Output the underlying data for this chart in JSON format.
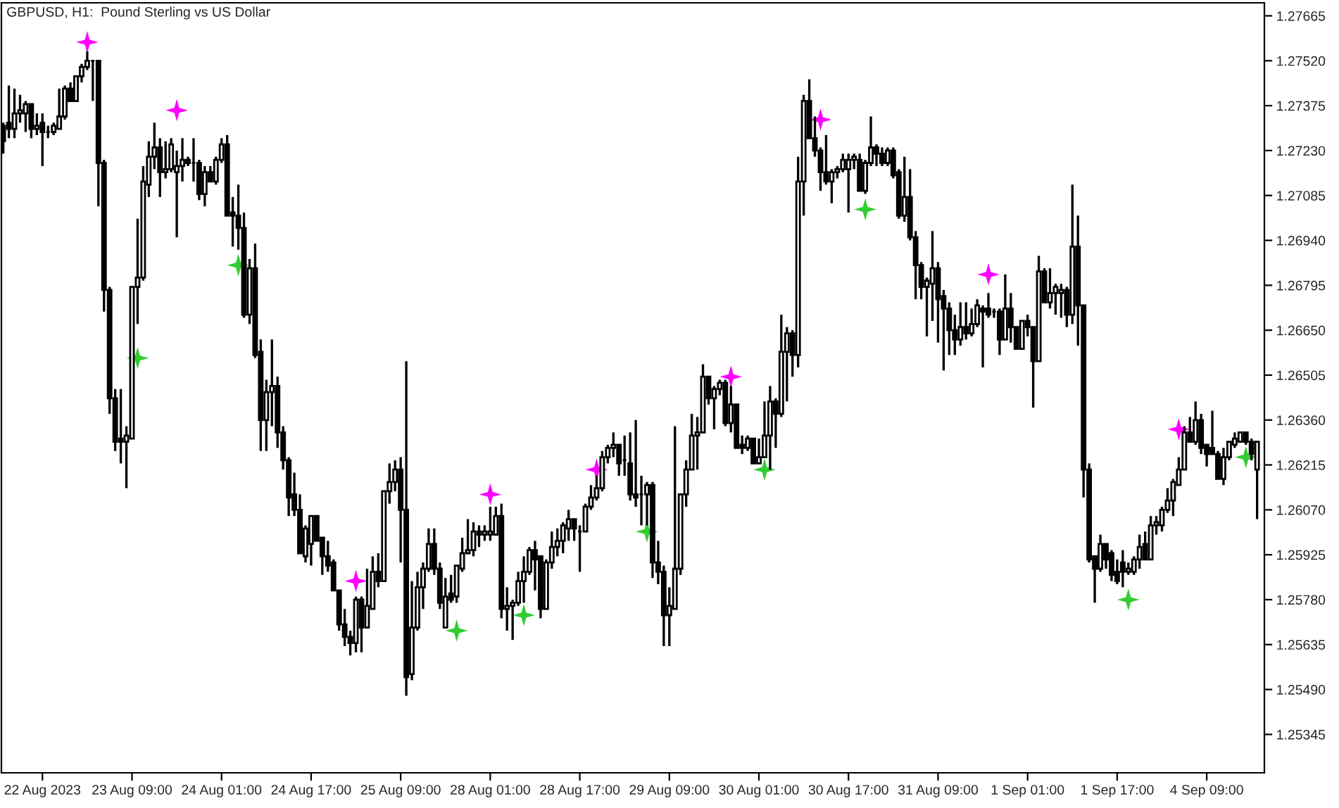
{
  "chart_data": {
    "type": "candlestick",
    "title": "GBPUSD, H1:  Pound Sterling vs US Dollar",
    "categories": [
      null,
      null,
      null,
      null,
      null,
      null,
      null,
      "22 Aug 2023",
      null,
      null,
      null,
      null,
      null,
      null,
      null,
      null,
      null,
      null,
      null,
      null,
      null,
      null,
      null,
      "23 Aug 09:00",
      null,
      null,
      null,
      null,
      null,
      null,
      null,
      null,
      null,
      null,
      null,
      null,
      null,
      null,
      null,
      "24 Aug 01:00",
      null,
      null,
      null,
      null,
      null,
      null,
      null,
      null,
      null,
      null,
      null,
      null,
      null,
      null,
      null,
      "24 Aug 17:00",
      null,
      null,
      null,
      null,
      null,
      null,
      null,
      null,
      null,
      null,
      null,
      null,
      null,
      null,
      null,
      "25 Aug 09:00",
      null,
      null,
      null,
      null,
      null,
      null,
      null,
      null,
      null,
      null,
      null,
      null,
      null,
      null,
      null,
      "28 Aug 01:00",
      null,
      null,
      null,
      null,
      null,
      null,
      null,
      null,
      null,
      null,
      null,
      null,
      null,
      null,
      null,
      "28 Aug 17:00",
      null,
      null,
      null,
      null,
      null,
      null,
      null,
      null,
      null,
      null,
      null,
      null,
      null,
      null,
      null,
      "29 Aug 09:00",
      null,
      null,
      null,
      null,
      null,
      null,
      null,
      null,
      null,
      null,
      null,
      null,
      null,
      null,
      null,
      "30 Aug 01:00",
      null,
      null,
      null,
      null,
      null,
      null,
      null,
      null,
      null,
      null,
      null,
      null,
      null,
      null,
      null,
      "30 Aug 17:00",
      null,
      null,
      null,
      null,
      null,
      null,
      null,
      null,
      null,
      null,
      null,
      null,
      null,
      null,
      null,
      "31 Aug 09:00",
      null,
      null,
      null,
      null,
      null,
      null,
      null,
      null,
      null,
      null,
      null,
      null,
      null,
      null,
      null,
      "1 Sep 01:00",
      null,
      null,
      null,
      null,
      null,
      null,
      null,
      null,
      null,
      null,
      null,
      null,
      null,
      null,
      null,
      "1 Sep 17:00",
      null,
      null,
      null,
      null,
      null,
      null,
      null,
      null,
      null,
      null,
      null,
      null,
      null,
      null,
      null,
      "4 Sep 09:00",
      null,
      null,
      null,
      null,
      null,
      null,
      null,
      null,
      null
    ],
    "ohlc": [
      [
        1.2731,
        1.2732,
        1.2722,
        1.2726
      ],
      [
        1.2732,
        1.2744,
        1.2727,
        1.273
      ],
      [
        1.273,
        1.2743,
        1.2727,
        1.2735
      ],
      [
        1.2735,
        1.2741,
        1.2732,
        1.2736
      ],
      [
        1.2735,
        1.2739,
        1.2729,
        1.2738
      ],
      [
        1.2738,
        1.2738,
        1.2727,
        1.273
      ],
      [
        1.273,
        1.2735,
        1.2728,
        1.2731
      ],
      [
        1.2732,
        1.2735,
        1.2718,
        1.2729
      ],
      [
        1.2729,
        1.2731,
        1.2727,
        1.2729
      ],
      [
        1.2729,
        1.2732,
        1.2728,
        1.2731
      ],
      [
        1.273,
        1.2743,
        1.273,
        1.2734
      ],
      [
        1.2734,
        1.2744,
        1.2733,
        1.2743
      ],
      [
        1.2743,
        1.2745,
        1.2739,
        1.2739
      ],
      [
        1.2739,
        1.2747,
        1.2739,
        1.2747
      ],
      [
        1.2747,
        1.2751,
        1.2745,
        1.275
      ],
      [
        1.275,
        1.2755,
        1.2749,
        1.2752
      ],
      [
        1.2752,
        1.2752,
        1.2739,
        1.2752
      ],
      [
        1.2752,
        1.2752,
        1.2705,
        1.2719
      ],
      [
        1.2719,
        1.272,
        1.2671,
        1.2678
      ],
      [
        1.2678,
        1.2679,
        1.2638,
        1.2643
      ],
      [
        1.2643,
        1.2646,
        1.2626,
        1.2629
      ],
      [
        1.263,
        1.2646,
        1.2622,
        1.2629
      ],
      [
        1.2629,
        1.2634,
        1.2614,
        1.2631
      ],
      [
        1.263,
        1.2679,
        1.263,
        1.2679
      ],
      [
        1.2679,
        1.2701,
        1.2667,
        1.2682
      ],
      [
        1.2682,
        1.2718,
        1.2681,
        1.2713
      ],
      [
        1.2712,
        1.2726,
        1.2708,
        1.2721
      ],
      [
        1.2721,
        1.2732,
        1.2717,
        1.2724
      ],
      [
        1.2724,
        1.2727,
        1.2708,
        1.2716
      ],
      [
        1.2716,
        1.2726,
        1.2714,
        1.2717
      ],
      [
        1.2717,
        1.2727,
        1.2716,
        1.2725
      ],
      [
        1.2716,
        1.2723,
        1.2695,
        1.2718
      ],
      [
        1.2718,
        1.2727,
        1.2713,
        1.272
      ],
      [
        1.272,
        1.2721,
        1.2718,
        1.2719
      ],
      [
        1.2719,
        1.2727,
        1.2713,
        1.2719
      ],
      [
        1.2719,
        1.272,
        1.2707,
        1.2709
      ],
      [
        1.2709,
        1.2718,
        1.2705,
        1.2716
      ],
      [
        1.2716,
        1.2718,
        1.2713,
        1.2713
      ],
      [
        1.2713,
        1.2721,
        1.2712,
        1.272
      ],
      [
        1.272,
        1.2727,
        1.2719,
        1.2725
      ],
      [
        1.2725,
        1.2728,
        1.2702,
        1.2702
      ],
      [
        1.2703,
        1.2708,
        1.2692,
        1.2702
      ],
      [
        1.2702,
        1.2712,
        1.2691,
        1.2698
      ],
      [
        1.2698,
        1.2703,
        1.2669,
        1.267
      ],
      [
        1.267,
        1.2688,
        1.2667,
        1.2685
      ],
      [
        1.2685,
        1.2693,
        1.2656,
        1.2657
      ],
      [
        1.2658,
        1.2662,
        1.2626,
        1.2636
      ],
      [
        1.2636,
        1.2649,
        1.2626,
        1.2645
      ],
      [
        1.2645,
        1.2662,
        1.2634,
        1.2647
      ],
      [
        1.2647,
        1.265,
        1.2627,
        1.2632
      ],
      [
        1.2632,
        1.2634,
        1.262,
        1.2623
      ],
      [
        1.2623,
        1.2624,
        1.2605,
        1.2611
      ],
      [
        1.2612,
        1.2619,
        1.2605,
        1.2607
      ],
      [
        1.2607,
        1.2612,
        1.2593,
        1.2593
      ],
      [
        1.2592,
        1.2602,
        1.259,
        1.2601
      ],
      [
        1.2596,
        1.2605,
        1.2589,
        1.2605
      ],
      [
        1.2605,
        1.2605,
        1.2597,
        1.2597
      ],
      [
        1.2598,
        1.2598,
        1.2586,
        1.2592
      ],
      [
        1.2592,
        1.2597,
        1.2587,
        1.2589
      ],
      [
        1.259,
        1.2591,
        1.2581,
        1.2581
      ],
      [
        1.2581,
        1.2581,
        1.2568,
        1.257
      ],
      [
        1.257,
        1.2575,
        1.2563,
        1.2566
      ],
      [
        1.2566,
        1.2568,
        1.256,
        1.2564
      ],
      [
        1.2564,
        1.2579,
        1.2561,
        1.2578
      ],
      [
        1.2578,
        1.2579,
        1.2561,
        1.2569
      ],
      [
        1.2569,
        1.2588,
        1.2569,
        1.2576
      ],
      [
        1.2575,
        1.2592,
        1.2575,
        1.2587
      ],
      [
        1.2587,
        1.2593,
        1.2582,
        1.2584
      ],
      [
        1.2584,
        1.2613,
        1.2584,
        1.2613
      ],
      [
        1.2613,
        1.2622,
        1.2609,
        1.2616
      ],
      [
        1.2616,
        1.2623,
        1.2613,
        1.262
      ],
      [
        1.262,
        1.2624,
        1.259,
        1.2607
      ],
      [
        1.2607,
        1.2655,
        1.2547,
        1.2553
      ],
      [
        1.2554,
        1.2584,
        1.2552,
        1.2569
      ],
      [
        1.2569,
        1.2587,
        1.2568,
        1.2582
      ],
      [
        1.2582,
        1.259,
        1.2575,
        1.2588
      ],
      [
        1.2588,
        1.2601,
        1.2587,
        1.2596
      ],
      [
        1.2596,
        1.2601,
        1.2586,
        1.2588
      ],
      [
        1.2588,
        1.259,
        1.2575,
        1.2577
      ],
      [
        1.2569,
        1.2585,
        1.2569,
        1.2579
      ],
      [
        1.258,
        1.2586,
        1.2577,
        1.2578
      ],
      [
        1.2579,
        1.2589,
        1.2577,
        1.2589
      ],
      [
        1.2588,
        1.2598,
        1.2587,
        1.2593
      ],
      [
        1.2593,
        1.2604,
        1.2593,
        1.2594
      ],
      [
        1.2594,
        1.2603,
        1.2592,
        1.26
      ],
      [
        1.26,
        1.2602,
        1.2595,
        1.2599
      ],
      [
        1.2599,
        1.2602,
        1.2597,
        1.26
      ],
      [
        1.2599,
        1.2608,
        1.2597,
        1.26
      ],
      [
        1.2599,
        1.2608,
        1.2599,
        1.2605
      ],
      [
        1.2605,
        1.2609,
        1.2572,
        1.2575
      ],
      [
        1.2575,
        1.2582,
        1.2568,
        1.2576
      ],
      [
        1.2576,
        1.2578,
        1.2565,
        1.2577
      ],
      [
        1.2577,
        1.2587,
        1.2576,
        1.2584
      ],
      [
        1.2584,
        1.2592,
        1.2577,
        1.2587
      ],
      [
        1.2587,
        1.2595,
        1.2586,
        1.2594
      ],
      [
        1.2594,
        1.2597,
        1.2581,
        1.2591
      ],
      [
        1.2592,
        1.2592,
        1.2572,
        1.2575
      ],
      [
        1.2575,
        1.2591,
        1.2575,
        1.259
      ],
      [
        1.259,
        1.26,
        1.2588,
        1.2595
      ],
      [
        1.2595,
        1.2601,
        1.2592,
        1.2597
      ],
      [
        1.2597,
        1.2603,
        1.2593,
        1.2602
      ],
      [
        1.2601,
        1.2607,
        1.2597,
        1.2604
      ],
      [
        1.2604,
        1.2604,
        1.2597,
        1.2601
      ],
      [
        1.26,
        1.2602,
        1.2587,
        1.26
      ],
      [
        1.26,
        1.2609,
        1.26,
        1.2608
      ],
      [
        1.2608,
        1.2615,
        1.2607,
        1.2611
      ],
      [
        1.2611,
        1.2618,
        1.261,
        1.2614
      ],
      [
        1.2614,
        1.2626,
        1.2613,
        1.2624
      ],
      [
        1.2624,
        1.2628,
        1.2622,
        1.2627
      ],
      [
        1.2627,
        1.2632,
        1.2624,
        1.2628
      ],
      [
        1.2628,
        1.2628,
        1.2618,
        1.2622
      ],
      [
        1.2623,
        1.2631,
        1.2618,
        1.2623
      ],
      [
        1.2622,
        1.2632,
        1.261,
        1.2612
      ],
      [
        1.2612,
        1.2636,
        1.2608,
        1.2611
      ],
      [
        1.2612,
        1.2618,
        1.2602,
        1.2612
      ],
      [
        1.2612,
        1.2616,
        1.2602,
        1.2615
      ],
      [
        1.2615,
        1.2616,
        1.2585,
        1.259
      ],
      [
        1.259,
        1.2597,
        1.2583,
        1.2587
      ],
      [
        1.2587,
        1.2589,
        1.2563,
        1.2573
      ],
      [
        1.2573,
        1.2582,
        1.2563,
        1.2576
      ],
      [
        1.2575,
        1.2634,
        1.2575,
        1.2588
      ],
      [
        1.2588,
        1.2612,
        1.2586,
        1.2612
      ],
      [
        1.2612,
        1.2623,
        1.2608,
        1.262
      ],
      [
        1.262,
        1.2638,
        1.262,
        1.2631
      ],
      [
        1.2631,
        1.2637,
        1.262,
        1.2632
      ],
      [
        1.2632,
        1.2654,
        1.2632,
        1.265
      ],
      [
        1.265,
        1.265,
        1.2641,
        1.2643
      ],
      [
        1.2643,
        1.2647,
        1.2633,
        1.2646
      ],
      [
        1.2646,
        1.2649,
        1.2644,
        1.2648
      ],
      [
        1.2648,
        1.2649,
        1.2634,
        1.2635
      ],
      [
        1.2635,
        1.2647,
        1.2632,
        1.2641
      ],
      [
        1.2641,
        1.2641,
        1.2627,
        1.2627
      ],
      [
        1.2628,
        1.2631,
        1.2625,
        1.2627
      ],
      [
        1.2627,
        1.2631,
        1.2626,
        1.263
      ],
      [
        1.263,
        1.263,
        1.2622,
        1.2622
      ],
      [
        1.2622,
        1.263,
        1.2622,
        1.2624
      ],
      [
        1.2624,
        1.2642,
        1.2624,
        1.2631
      ],
      [
        1.2631,
        1.2647,
        1.262,
        1.2642
      ],
      [
        1.2642,
        1.2643,
        1.2627,
        1.2638
      ],
      [
        1.2638,
        1.267,
        1.2637,
        1.2658
      ],
      [
        1.2658,
        1.2666,
        1.2642,
        1.2664
      ],
      [
        1.2664,
        1.2665,
        1.265,
        1.2657
      ],
      [
        1.2657,
        1.2721,
        1.2653,
        1.2713
      ],
      [
        1.2713,
        1.2741,
        1.2702,
        1.2739
      ],
      [
        1.2739,
        1.2746,
        1.2727,
        1.2727
      ],
      [
        1.2727,
        1.2734,
        1.2721,
        1.2723
      ],
      [
        1.2723,
        1.2724,
        1.271,
        1.2716
      ],
      [
        1.2716,
        1.2728,
        1.2712,
        1.2713
      ],
      [
        1.2713,
        1.2717,
        1.2706,
        1.2716
      ],
      [
        1.2716,
        1.2718,
        1.2714,
        1.2717
      ],
      [
        1.2717,
        1.2722,
        1.2716,
        1.272
      ],
      [
        1.2717,
        1.2722,
        1.2703,
        1.272
      ],
      [
        1.272,
        1.2722,
        1.2717,
        1.2721
      ],
      [
        1.272,
        1.2722,
        1.271,
        1.271
      ],
      [
        1.271,
        1.272,
        1.2709,
        1.2719
      ],
      [
        1.2719,
        1.2734,
        1.2718,
        1.2724
      ],
      [
        1.2724,
        1.2725,
        1.2718,
        1.2722
      ],
      [
        1.2722,
        1.2724,
        1.2718,
        1.2719
      ],
      [
        1.2719,
        1.2724,
        1.2718,
        1.2723
      ],
      [
        1.2723,
        1.2724,
        1.2714,
        1.2715
      ],
      [
        1.2716,
        1.2717,
        1.2701,
        1.2702
      ],
      [
        1.2702,
        1.2721,
        1.27,
        1.2708
      ],
      [
        1.2708,
        1.2717,
        1.2694,
        1.2695
      ],
      [
        1.2695,
        1.2697,
        1.2675,
        1.2686
      ],
      [
        1.2686,
        1.2687,
        1.2675,
        1.2679
      ],
      [
        1.2679,
        1.2682,
        1.2663,
        1.2681
      ],
      [
        1.268,
        1.2697,
        1.2668,
        1.2685
      ],
      [
        1.2685,
        1.2687,
        1.2661,
        1.2675
      ],
      [
        1.2676,
        1.2678,
        1.2652,
        1.2672
      ],
      [
        1.2672,
        1.2674,
        1.2657,
        1.2665
      ],
      [
        1.2665,
        1.267,
        1.2657,
        1.2662
      ],
      [
        1.2662,
        1.2674,
        1.266,
        1.2666
      ],
      [
        1.2666,
        1.2674,
        1.2662,
        1.2664
      ],
      [
        1.2664,
        1.2672,
        1.2663,
        1.2667
      ],
      [
        1.2667,
        1.2675,
        1.2666,
        1.2673
      ],
      [
        1.2672,
        1.2673,
        1.2653,
        1.2671
      ],
      [
        1.2672,
        1.2677,
        1.2669,
        1.267
      ],
      [
        1.2671,
        1.2672,
        1.2669,
        1.2671
      ],
      [
        1.2671,
        1.2672,
        1.2657,
        1.2662
      ],
      [
        1.2662,
        1.2683,
        1.2662,
        1.2672
      ],
      [
        1.2672,
        1.2677,
        1.2661,
        1.2666
      ],
      [
        1.2666,
        1.2666,
        1.2659,
        1.2659
      ],
      [
        1.2659,
        1.2668,
        1.2659,
        1.2668
      ],
      [
        1.2668,
        1.267,
        1.2663,
        1.2666
      ],
      [
        1.2666,
        1.2666,
        1.264,
        1.2655
      ],
      [
        1.2655,
        1.2689,
        1.2655,
        1.2684
      ],
      [
        1.2684,
        1.2685,
        1.2674,
        1.2674
      ],
      [
        1.2674,
        1.2685,
        1.2672,
        1.2677
      ],
      [
        1.2677,
        1.268,
        1.267,
        1.2679
      ],
      [
        1.2677,
        1.268,
        1.2669,
        1.2678
      ],
      [
        1.2678,
        1.2679,
        1.2666,
        1.267
      ],
      [
        1.267,
        1.2712,
        1.2667,
        1.2692
      ],
      [
        1.2692,
        1.2702,
        1.266,
        1.2673
      ],
      [
        1.2673,
        1.2673,
        1.2611,
        1.262
      ],
      [
        1.262,
        1.2622,
        1.259,
        1.2591
      ],
      [
        1.2592,
        1.2592,
        1.2577,
        1.2588
      ],
      [
        1.2588,
        1.2599,
        1.2587,
        1.2596
      ],
      [
        1.2596,
        1.2596,
        1.2588,
        1.2591
      ],
      [
        1.2593,
        1.2594,
        1.2584,
        1.2586
      ],
      [
        1.2587,
        1.2591,
        1.2583,
        1.2584
      ],
      [
        1.259,
        1.2594,
        1.2582,
        1.2587
      ],
      [
        1.2587,
        1.259,
        1.2586,
        1.2588
      ],
      [
        1.2587,
        1.2592,
        1.2586,
        1.2591
      ],
      [
        1.2591,
        1.2599,
        1.2588,
        1.2595
      ],
      [
        1.2596,
        1.26,
        1.2591,
        1.2591
      ],
      [
        1.2591,
        1.2605,
        1.2591,
        1.2602
      ],
      [
        1.2602,
        1.2605,
        1.2599,
        1.2603
      ],
      [
        1.2602,
        1.2608,
        1.26,
        1.2607
      ],
      [
        1.2607,
        1.2614,
        1.2606,
        1.261
      ],
      [
        1.261,
        1.2617,
        1.2605,
        1.2616
      ],
      [
        1.2615,
        1.2624,
        1.2615,
        1.262
      ],
      [
        1.262,
        1.2634,
        1.262,
        1.2632
      ],
      [
        1.2632,
        1.2637,
        1.2629,
        1.2629
      ],
      [
        1.2629,
        1.2642,
        1.2628,
        1.2636
      ],
      [
        1.2636,
        1.2638,
        1.2625,
        1.2627
      ],
      [
        1.2628,
        1.2628,
        1.2621,
        1.2625
      ],
      [
        1.2627,
        1.2639,
        1.2625,
        1.2625
      ],
      [
        1.2625,
        1.2626,
        1.2617,
        1.2617
      ],
      [
        1.2617,
        1.2627,
        1.2615,
        1.2624
      ],
      [
        1.2624,
        1.2629,
        1.2623,
        1.2629
      ],
      [
        1.2628,
        1.2632,
        1.2627,
        1.263
      ],
      [
        1.2629,
        1.2632,
        1.2629,
        1.2632
      ],
      [
        1.2632,
        1.2632,
        1.2628,
        1.2629
      ],
      [
        1.2629,
        1.263,
        1.2623,
        1.2625
      ],
      [
        1.262,
        1.2629,
        1.2604,
        1.2629
      ]
    ],
    "series": [
      {
        "type": "scatter",
        "marker": "star",
        "color": "#ff00ff",
        "values": [
          null,
          null,
          null,
          null,
          null,
          null,
          null,
          null,
          null,
          null,
          null,
          null,
          null,
          null,
          null,
          1.2758,
          null,
          null,
          null,
          null,
          null,
          null,
          null,
          null,
          null,
          null,
          null,
          null,
          null,
          null,
          null,
          1.2736,
          null,
          null,
          null,
          null,
          null,
          null,
          null,
          null,
          null,
          null,
          null,
          null,
          null,
          null,
          null,
          null,
          null,
          null,
          null,
          null,
          null,
          null,
          null,
          null,
          null,
          null,
          null,
          null,
          null,
          null,
          null,
          1.2584,
          null,
          null,
          null,
          null,
          null,
          null,
          null,
          null,
          null,
          null,
          null,
          null,
          null,
          null,
          null,
          null,
          null,
          null,
          null,
          null,
          null,
          null,
          null,
          1.2612,
          null,
          null,
          null,
          null,
          null,
          null,
          null,
          null,
          null,
          null,
          null,
          null,
          null,
          null,
          null,
          null,
          null,
          null,
          1.262,
          null,
          null,
          null,
          null,
          null,
          null,
          null,
          null,
          null,
          null,
          null,
          null,
          null,
          null,
          null,
          null,
          null,
          null,
          null,
          null,
          null,
          null,
          null,
          1.265,
          null,
          null,
          null,
          null,
          null,
          null,
          null,
          null,
          null,
          null,
          null,
          null,
          null,
          null,
          null,
          1.2733,
          null,
          null,
          null,
          null,
          null,
          null,
          null,
          null,
          null,
          null,
          null,
          null,
          null,
          null,
          null,
          null,
          null,
          null,
          null,
          null,
          null,
          null,
          null,
          null,
          null,
          null,
          null,
          null,
          null,
          1.2683,
          null,
          null,
          null,
          null,
          null,
          null,
          null,
          null,
          null,
          null,
          null,
          null,
          null,
          null,
          null,
          null,
          null,
          null,
          null,
          null,
          null,
          null,
          null,
          null,
          null,
          null,
          null,
          null,
          null,
          null,
          null,
          null,
          null,
          1.2633,
          null,
          null,
          null,
          null,
          null,
          null,
          null,
          null,
          null,
          null,
          null,
          null,
          null,
          null
        ]
      },
      {
        "type": "scatter",
        "marker": "star",
        "color": "#33cc33",
        "values": [
          null,
          null,
          null,
          null,
          null,
          null,
          null,
          null,
          null,
          null,
          null,
          null,
          null,
          null,
          null,
          null,
          null,
          null,
          null,
          null,
          null,
          null,
          null,
          null,
          1.2656,
          null,
          null,
          null,
          null,
          null,
          null,
          null,
          null,
          null,
          null,
          null,
          null,
          null,
          null,
          null,
          null,
          null,
          1.2686,
          null,
          null,
          null,
          null,
          null,
          null,
          null,
          null,
          null,
          null,
          null,
          null,
          null,
          null,
          null,
          null,
          null,
          null,
          null,
          null,
          null,
          null,
          null,
          null,
          null,
          null,
          null,
          null,
          null,
          null,
          null,
          null,
          null,
          null,
          null,
          null,
          null,
          null,
          1.2568,
          null,
          null,
          null,
          null,
          null,
          null,
          null,
          null,
          null,
          null,
          null,
          1.2573,
          null,
          null,
          null,
          null,
          null,
          null,
          null,
          null,
          null,
          null,
          null,
          null,
          null,
          null,
          null,
          null,
          null,
          null,
          null,
          null,
          null,
          1.26,
          null,
          null,
          null,
          null,
          null,
          null,
          null,
          null,
          null,
          null,
          null,
          null,
          null,
          null,
          null,
          null,
          null,
          null,
          null,
          null,
          1.262,
          null,
          null,
          null,
          null,
          null,
          null,
          null,
          null,
          null,
          null,
          null,
          null,
          null,
          null,
          null,
          null,
          null,
          1.2704,
          null,
          null,
          null,
          null,
          null,
          null,
          null,
          null,
          null,
          null,
          null,
          null,
          null,
          null,
          null,
          null,
          null,
          null,
          null,
          null,
          null,
          null,
          null,
          null,
          null,
          null,
          null,
          null,
          null,
          null,
          null,
          null,
          null,
          null,
          null,
          null,
          null,
          null,
          null,
          null,
          null,
          null,
          null,
          null,
          null,
          null,
          1.2578,
          null,
          null,
          null,
          null,
          null,
          null,
          null,
          null,
          null,
          null,
          null,
          null,
          null,
          null,
          null,
          null,
          null,
          null,
          null,
          null,
          1.2624,
          null,
          null
        ]
      }
    ],
    "ylim": [
      1.25221,
      1.27707
    ],
    "yticks": [
      1.25345,
      {
        "value": 1.2549,
        "label": "1.25490"
      },
      1.25635,
      {
        "value": 1.2578,
        "label": "1.25780"
      },
      1.25925,
      {
        "value": 1.2607,
        "label": "1.26070"
      },
      1.26215,
      {
        "value": 1.2636,
        "label": "1.26360"
      },
      1.26505,
      {
        "value": 1.2665,
        "label": "1.26650"
      },
      1.26795,
      {
        "value": 1.2694,
        "label": "1.26940"
      },
      1.27085,
      {
        "value": 1.2723,
        "label": "1.27230"
      },
      1.27375,
      {
        "value": 1.2752,
        "label": "1.27520"
      },
      1.27665
    ],
    "grid": false,
    "legend": false
  }
}
